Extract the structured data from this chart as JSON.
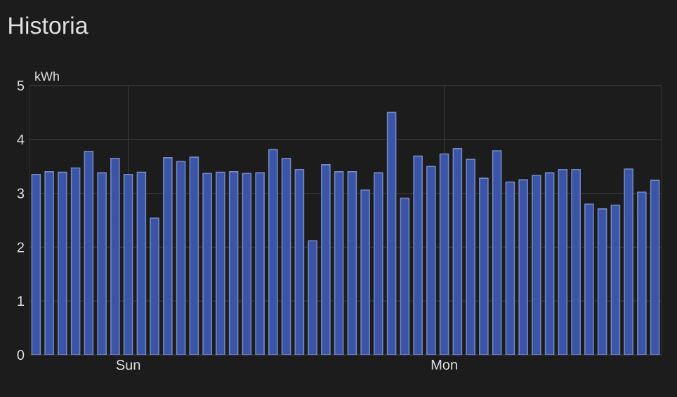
{
  "chart_data": {
    "type": "bar",
    "title": "Historia",
    "ylabel": "kWh",
    "categories": [
      null,
      null,
      null,
      null,
      null,
      null,
      null,
      "Sun",
      null,
      null,
      null,
      null,
      null,
      null,
      null,
      null,
      null,
      null,
      null,
      null,
      null,
      null,
      null,
      null,
      null,
      null,
      null,
      null,
      null,
      null,
      null,
      "Mon",
      null,
      null,
      null,
      null,
      null,
      null,
      null,
      null,
      null,
      null,
      null,
      null,
      null,
      null,
      null,
      null
    ],
    "values": [
      3.35,
      3.4,
      3.39,
      3.47,
      3.78,
      3.38,
      3.65,
      3.35,
      3.39,
      2.54,
      3.66,
      3.59,
      3.67,
      3.37,
      3.39,
      3.4,
      3.37,
      3.38,
      3.81,
      3.65,
      3.44,
      2.12,
      3.53,
      3.4,
      3.4,
      3.06,
      3.38,
      4.5,
      2.91,
      3.69,
      3.5,
      3.73,
      3.83,
      3.63,
      3.28,
      3.79,
      3.21,
      3.25,
      3.33,
      3.38,
      3.44,
      3.44,
      2.8,
      2.71,
      2.78,
      3.45,
      3.02,
      3.24
    ],
    "color": "#3a54a8",
    "ylim": [
      0,
      5
    ],
    "yticks": [
      0,
      1,
      2,
      3,
      4,
      5
    ],
    "grid": true
  }
}
